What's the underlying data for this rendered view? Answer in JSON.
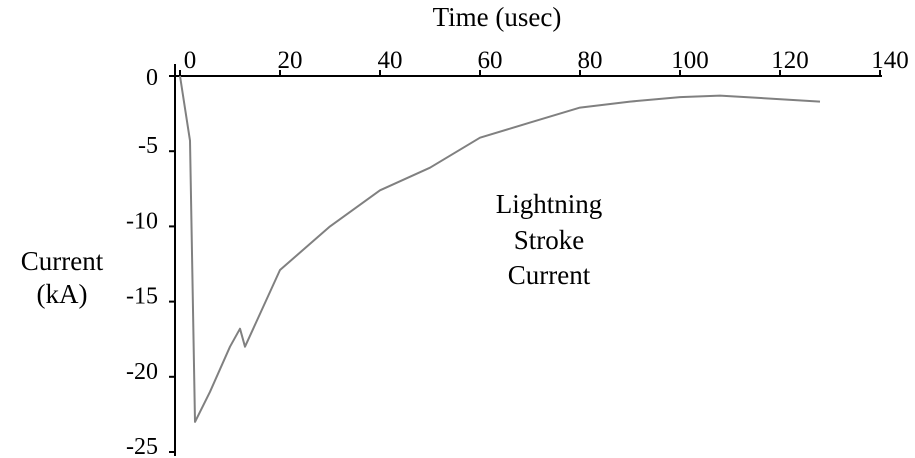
{
  "chart_data": {
    "type": "line",
    "xlabel": "Time (usec)",
    "ylabel": [
      "Current",
      "(kA)"
    ],
    "annotation": [
      "Lightning",
      "Stroke",
      "Current"
    ],
    "xlim": [
      0,
      140
    ],
    "ylim": [
      -25,
      0
    ],
    "x_ticks": [
      0,
      20,
      40,
      60,
      80,
      100,
      120,
      140
    ],
    "x_tick_labels": [
      "0",
      "20",
      "40",
      "60",
      "80",
      "100",
      "120",
      "140"
    ],
    "y_ticks": [
      0,
      -5,
      -10,
      -15,
      -20,
      -25
    ],
    "y_tick_labels": [
      "0",
      "-5",
      "-10",
      "-15",
      "-20",
      "-25"
    ],
    "x_axis_position": "top",
    "grid": false,
    "line_color": "#808080",
    "series": [
      {
        "x": [
          0,
          2,
          3,
          6,
          10,
          12,
          13,
          20,
          30,
          40,
          50,
          60,
          70,
          80,
          90,
          100,
          108,
          128
        ],
        "y": [
          0,
          -4.3,
          -23,
          -21,
          -18,
          -16.8,
          -18,
          -12.9,
          -10,
          -7.6,
          -6.1,
          -4.1,
          -3.1,
          -2.1,
          -1.7,
          -1.4,
          -1.3,
          -1.7
        ]
      }
    ]
  }
}
